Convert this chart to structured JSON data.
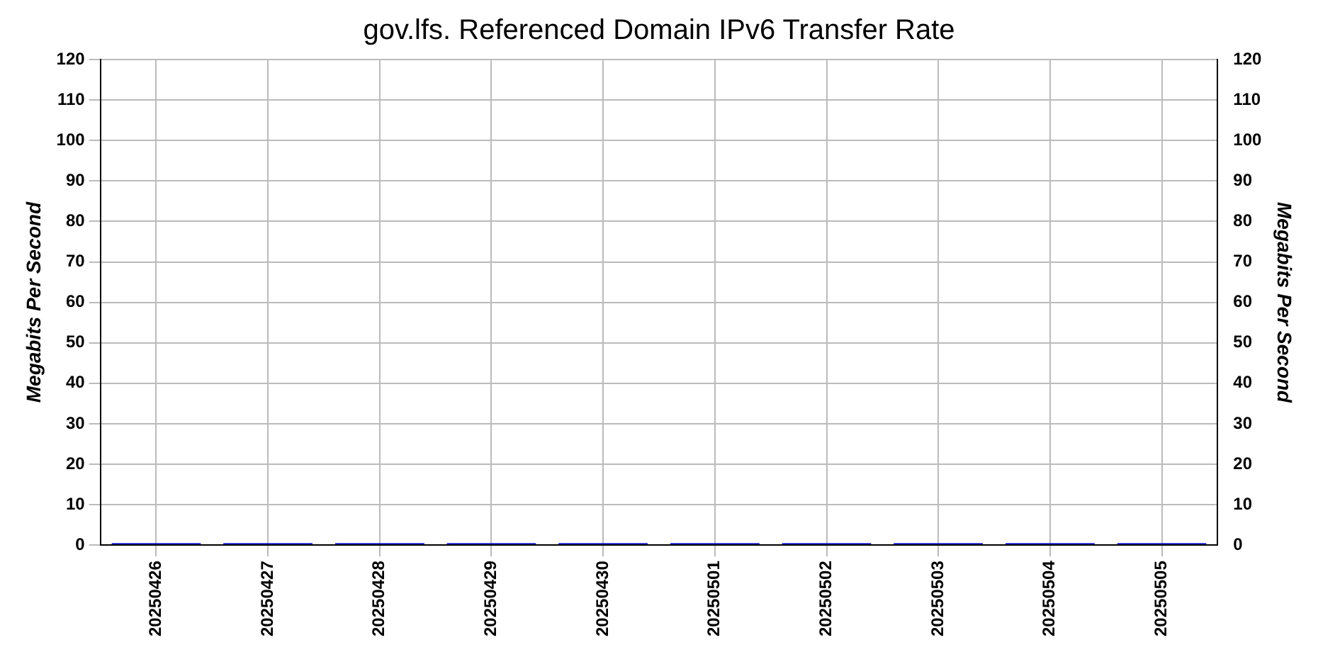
{
  "chart_data": {
    "type": "bar",
    "title": "gov.lfs. Referenced Domain IPv6 Transfer Rate",
    "ylabel": "Megabits Per Second",
    "y2label": "Megabits Per Second",
    "categories": [
      "20250426",
      "20250427",
      "20250428",
      "20250429",
      "20250430",
      "20250501",
      "20250502",
      "20250503",
      "20250504",
      "20250505"
    ],
    "series": [
      {
        "color": "#0000cc",
        "values": [
          0.5,
          0.5,
          0.5,
          0.5,
          0.5,
          0.5,
          0.5,
          0.5,
          0.5,
          0.5
        ]
      }
    ],
    "ylim": [
      0,
      120
    ],
    "yticks": [
      0,
      10,
      20,
      30,
      40,
      50,
      60,
      70,
      80,
      90,
      100,
      110,
      120
    ],
    "y2lim": [
      0,
      120
    ],
    "y2ticks": [
      0,
      10,
      20,
      30,
      40,
      50,
      60,
      70,
      80,
      90,
      100,
      110,
      120
    ],
    "grid": true,
    "legend": false
  }
}
